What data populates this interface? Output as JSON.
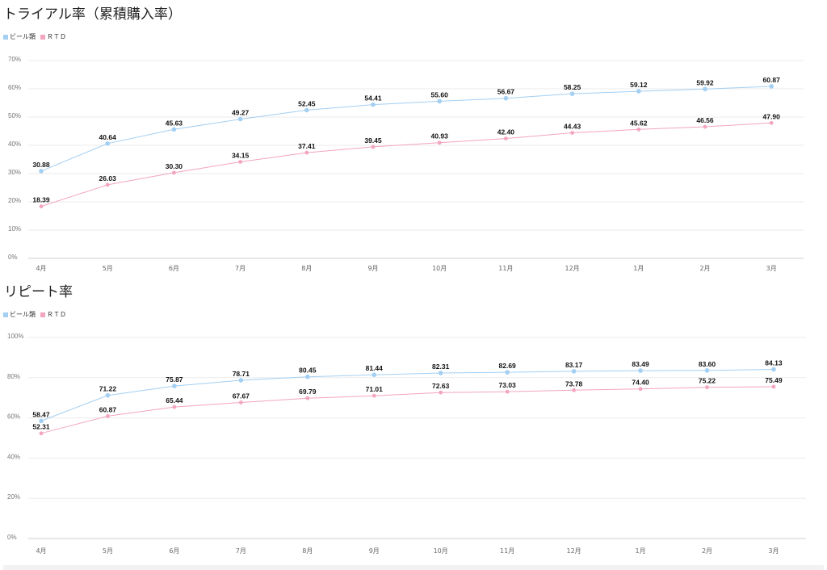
{
  "chart_data": [
    {
      "type": "line",
      "title": "トライアル率（累積購入率）",
      "categories": [
        "4月",
        "5月",
        "6月",
        "7月",
        "8月",
        "9月",
        "10月",
        "11月",
        "12月",
        "1月",
        "2月",
        "3月"
      ],
      "series": [
        {
          "name": "ビール類",
          "color": "#a3cff2",
          "values": [
            30.88,
            40.64,
            45.63,
            49.27,
            52.45,
            54.41,
            55.6,
            56.67,
            58.25,
            59.12,
            59.92,
            60.87
          ]
        },
        {
          "name": "ＲＴＤ",
          "color": "#f3a5bd",
          "values": [
            18.39,
            26.03,
            30.3,
            34.15,
            37.41,
            39.45,
            40.93,
            42.4,
            44.43,
            45.62,
            46.56,
            47.9
          ]
        }
      ],
      "yticks": [
        0,
        10,
        20,
        30,
        40,
        50,
        60,
        70
      ],
      "ytick_labels": [
        "0%",
        "10%",
        "20%",
        "30%",
        "40%",
        "50%",
        "60%",
        "70%"
      ],
      "ylim": [
        0,
        70
      ],
      "xlabel": "",
      "ylabel": "",
      "grid": true,
      "legend": "top-left"
    },
    {
      "type": "line",
      "title": "リピート率",
      "categories": [
        "4月",
        "5月",
        "6月",
        "7月",
        "8月",
        "9月",
        "10月",
        "11月",
        "12月",
        "1月",
        "2月",
        "3月"
      ],
      "series": [
        {
          "name": "ビール類",
          "color": "#a3cff2",
          "values": [
            58.47,
            71.22,
            75.87,
            78.71,
            80.45,
            81.44,
            82.31,
            82.69,
            83.17,
            83.49,
            83.6,
            84.13
          ]
        },
        {
          "name": "ＲＴＤ",
          "color": "#f3a5bd",
          "values": [
            52.31,
            60.87,
            65.44,
            67.67,
            69.79,
            71.01,
            72.63,
            73.03,
            73.78,
            74.4,
            75.22,
            75.49
          ]
        }
      ],
      "yticks": [
        0,
        20,
        40,
        60,
        80,
        100
      ],
      "ytick_labels": [
        "0%",
        "20%",
        "40%",
        "60%",
        "80%",
        "100%"
      ],
      "ylim": [
        0,
        100
      ],
      "xlabel": "",
      "ylabel": "",
      "grid": true,
      "legend": "top-left"
    }
  ]
}
